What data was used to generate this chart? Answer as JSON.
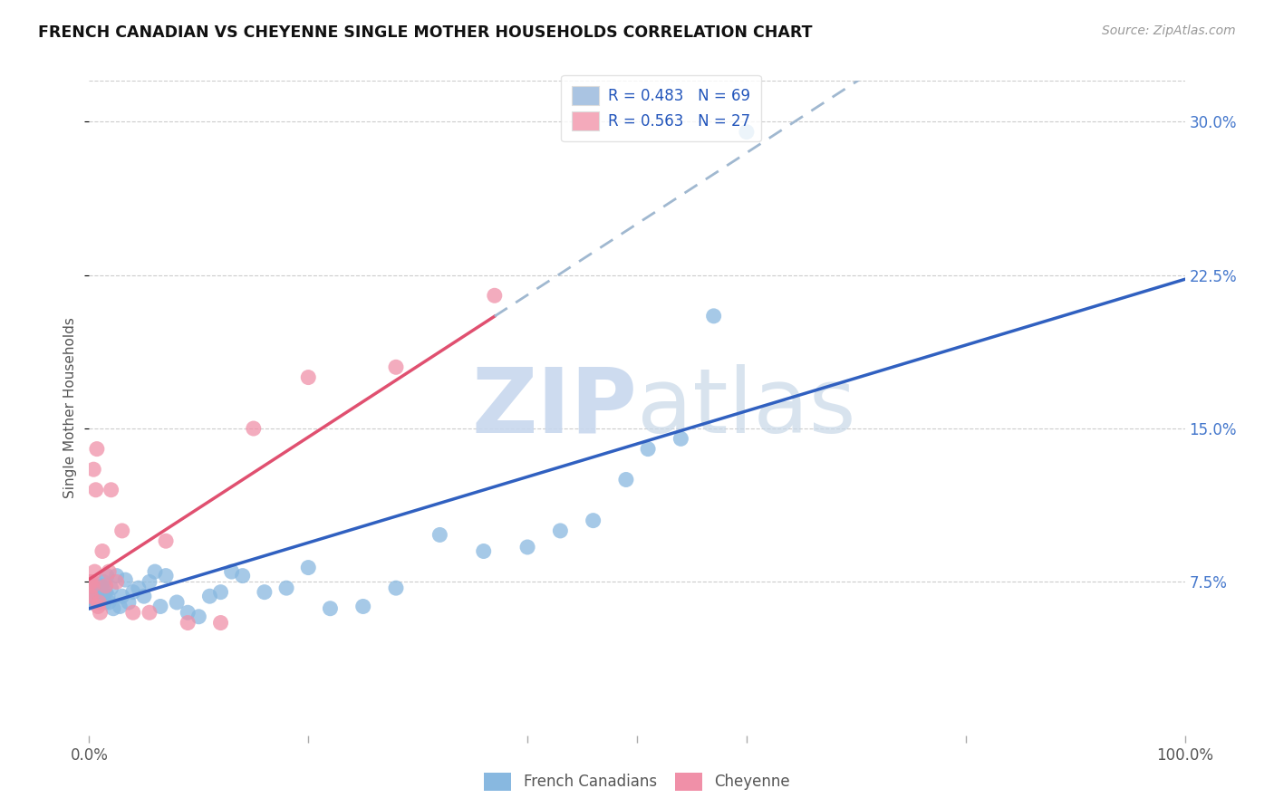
{
  "title": "FRENCH CANADIAN VS CHEYENNE SINGLE MOTHER HOUSEHOLDS CORRELATION CHART",
  "source": "Source: ZipAtlas.com",
  "ylabel_label": "Single Mother Households",
  "ytick_labels": [
    "7.5%",
    "15.0%",
    "22.5%",
    "30.0%"
  ],
  "ytick_values": [
    0.075,
    0.15,
    0.225,
    0.3
  ],
  "xtick_positions": [
    0.0,
    0.2,
    0.4,
    0.6,
    0.8,
    1.0
  ],
  "xtick_labels": [
    "0.0%",
    "",
    "",
    "",
    "",
    "100.0%"
  ],
  "xlim": [
    0.0,
    1.0
  ],
  "ylim": [
    0.0,
    0.32
  ],
  "legend_label1": "R = 0.483   N = 69",
  "legend_label2": "R = 0.563   N = 27",
  "legend_color1": "#aac4e2",
  "legend_color2": "#f4aabb",
  "french_canadians_color": "#88b8e0",
  "cheyenne_color": "#f090a8",
  "trendline1_color": "#3060c0",
  "trendline2_color": "#e05070",
  "trendline2_ext_color": "#a0b8d0",
  "watermark_color": "#c8d8ee",
  "fc_R": 0.483,
  "ch_R": 0.563,
  "french_canadians_x": [
    0.001,
    0.001,
    0.001,
    0.002,
    0.002,
    0.002,
    0.003,
    0.003,
    0.003,
    0.004,
    0.004,
    0.005,
    0.005,
    0.005,
    0.006,
    0.006,
    0.007,
    0.007,
    0.008,
    0.008,
    0.009,
    0.009,
    0.01,
    0.01,
    0.011,
    0.012,
    0.013,
    0.014,
    0.015,
    0.016,
    0.017,
    0.018,
    0.02,
    0.022,
    0.025,
    0.028,
    0.03,
    0.033,
    0.036,
    0.04,
    0.045,
    0.05,
    0.055,
    0.06,
    0.065,
    0.07,
    0.08,
    0.09,
    0.1,
    0.11,
    0.12,
    0.13,
    0.14,
    0.16,
    0.18,
    0.2,
    0.22,
    0.25,
    0.28,
    0.32,
    0.36,
    0.4,
    0.43,
    0.46,
    0.49,
    0.51,
    0.54,
    0.57,
    0.6
  ],
  "french_canadians_y": [
    0.065,
    0.068,
    0.07,
    0.065,
    0.067,
    0.072,
    0.066,
    0.069,
    0.073,
    0.068,
    0.071,
    0.066,
    0.068,
    0.07,
    0.067,
    0.069,
    0.068,
    0.072,
    0.067,
    0.07,
    0.068,
    0.072,
    0.065,
    0.07,
    0.073,
    0.068,
    0.075,
    0.065,
    0.07,
    0.078,
    0.068,
    0.065,
    0.072,
    0.062,
    0.078,
    0.063,
    0.068,
    0.076,
    0.065,
    0.07,
    0.072,
    0.068,
    0.075,
    0.08,
    0.063,
    0.078,
    0.065,
    0.06,
    0.058,
    0.068,
    0.07,
    0.08,
    0.078,
    0.07,
    0.072,
    0.082,
    0.062,
    0.063,
    0.072,
    0.098,
    0.09,
    0.092,
    0.1,
    0.105,
    0.125,
    0.14,
    0.145,
    0.205,
    0.295
  ],
  "cheyenne_x": [
    0.001,
    0.001,
    0.002,
    0.003,
    0.003,
    0.004,
    0.005,
    0.006,
    0.007,
    0.008,
    0.009,
    0.01,
    0.012,
    0.015,
    0.018,
    0.02,
    0.025,
    0.03,
    0.04,
    0.055,
    0.07,
    0.09,
    0.12,
    0.15,
    0.2,
    0.28,
    0.37
  ],
  "cheyenne_y": [
    0.075,
    0.068,
    0.068,
    0.073,
    0.075,
    0.13,
    0.08,
    0.12,
    0.14,
    0.063,
    0.065,
    0.06,
    0.09,
    0.073,
    0.08,
    0.12,
    0.075,
    0.1,
    0.06,
    0.06,
    0.095,
    0.055,
    0.055,
    0.15,
    0.175,
    0.18,
    0.215
  ]
}
